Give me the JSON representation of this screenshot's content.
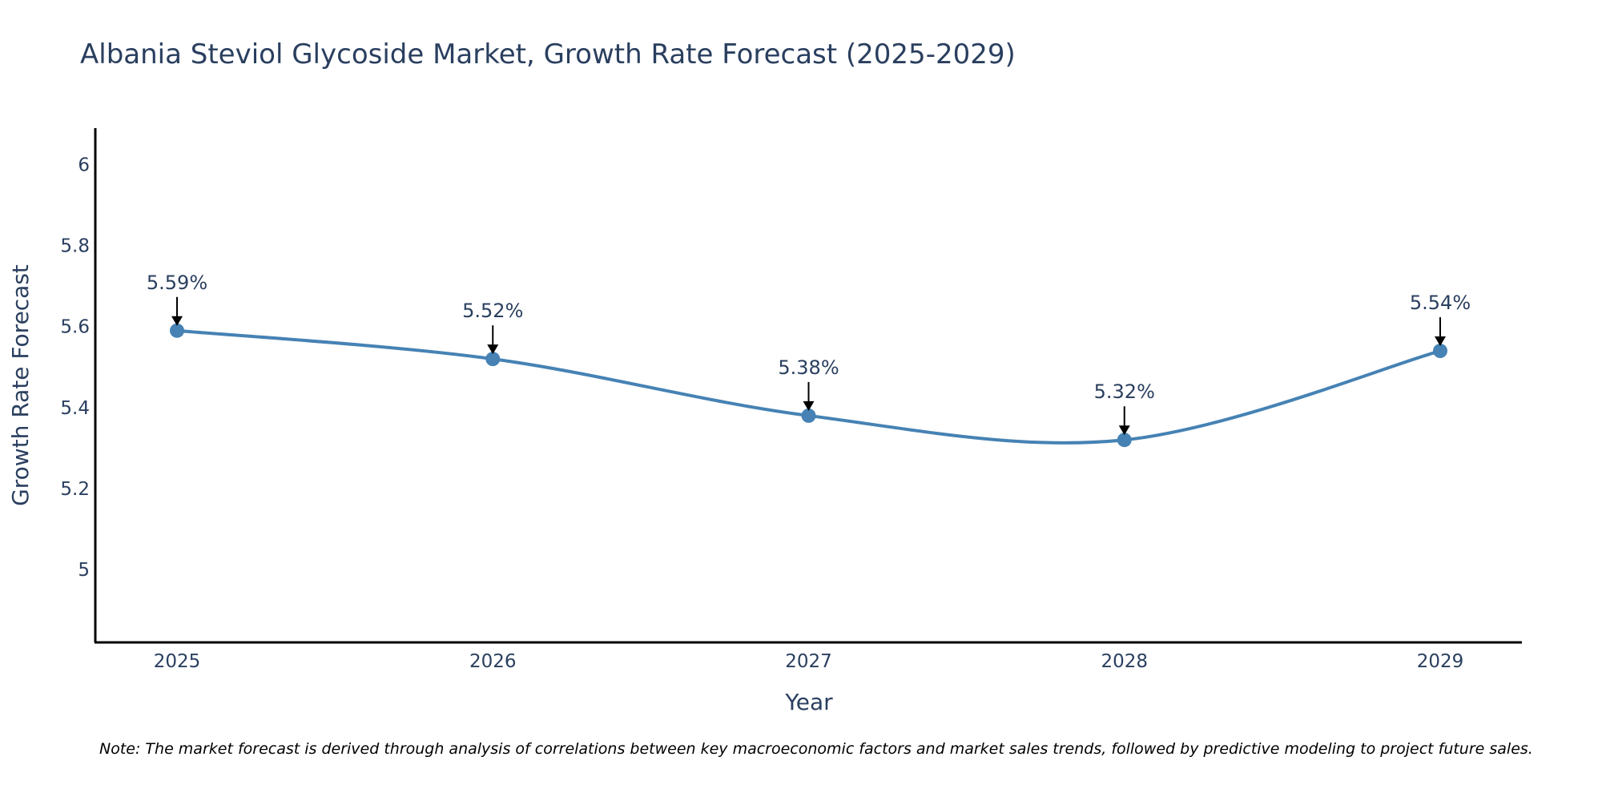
{
  "chart_data": {
    "type": "line",
    "title": "Albania Steviol Glycoside Market, Growth Rate Forecast (2025-2029)",
    "xlabel": "Year",
    "ylabel": "Growth Rate Forecast",
    "categories": [
      "2025",
      "2026",
      "2027",
      "2028",
      "2029"
    ],
    "series": [
      {
        "name": "Growth Rate Forecast",
        "values": [
          5.59,
          5.52,
          5.38,
          5.32,
          5.54
        ],
        "color": "#4682b4"
      }
    ],
    "data_labels": [
      "5.59%",
      "5.52%",
      "5.38%",
      "5.32%",
      "5.54%"
    ],
    "ylim": [
      4.82,
      6.09
    ],
    "yticks": [
      5,
      5.2,
      5.4,
      5.6,
      5.8,
      6
    ],
    "ytick_labels": [
      "5",
      "5.2",
      "5.4",
      "5.6",
      "5.8",
      "6"
    ],
    "line_shape": "spline",
    "grid": false,
    "note": "Note: The market forecast is derived through analysis of correlations between key macroeconomic factors and market sales trends, followed by predictive modeling to project future sales."
  }
}
